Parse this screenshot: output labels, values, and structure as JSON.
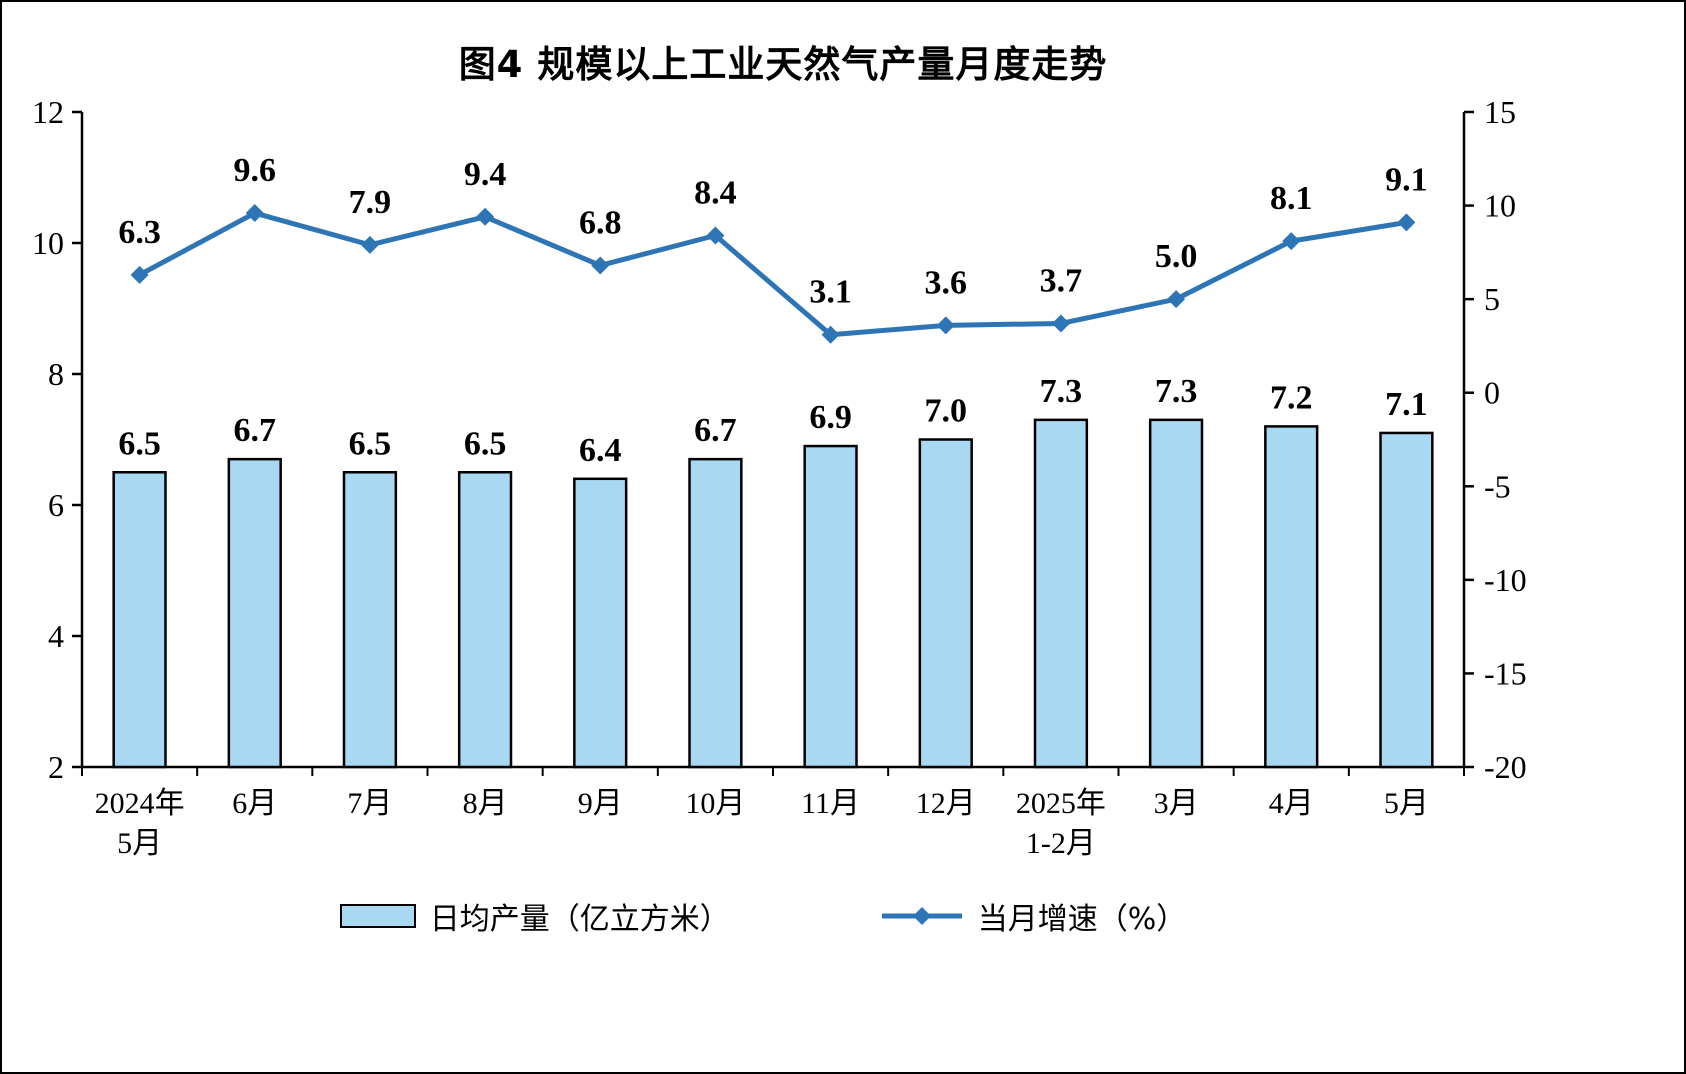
{
  "chart_data": {
    "type": "bar",
    "subtype": "bar+line combo, dual axis",
    "title": "图4 规模以上工业天然气产量月度走势",
    "categories": [
      "2024年\n5月",
      "6月",
      "7月",
      "8月",
      "9月",
      "10月",
      "11月",
      "12月",
      "2025年\n1-2月",
      "3月",
      "4月",
      "5月"
    ],
    "series": [
      {
        "name": "日均产量（亿立方米）",
        "type": "bar",
        "axis": "left",
        "values": [
          6.5,
          6.7,
          6.5,
          6.5,
          6.4,
          6.7,
          6.9,
          7.0,
          7.3,
          7.3,
          7.2,
          7.1
        ]
      },
      {
        "name": "当月增速（%）",
        "type": "line",
        "axis": "right",
        "values": [
          6.3,
          9.6,
          7.9,
          9.4,
          6.8,
          8.4,
          3.1,
          3.6,
          3.7,
          5.0,
          8.1,
          9.1
        ]
      }
    ],
    "left_axis": {
      "min": 2,
      "max": 12,
      "ticks": [
        2,
        4,
        6,
        8,
        10,
        12
      ]
    },
    "right_axis": {
      "min": -20,
      "max": 15,
      "ticks": [
        -20,
        -15,
        -10,
        -5,
        0,
        5,
        10,
        15
      ]
    },
    "legend": {
      "bar": "日均产量（亿立方米）",
      "line": "当月增速（%）"
    },
    "grid": "off",
    "legend_position": "bottom"
  },
  "colors": {
    "bar_fill": "#A8D8F2",
    "bar_border": "#000000",
    "line": "#2E75B6",
    "text": "#000000",
    "background": "#FFFFFF"
  }
}
